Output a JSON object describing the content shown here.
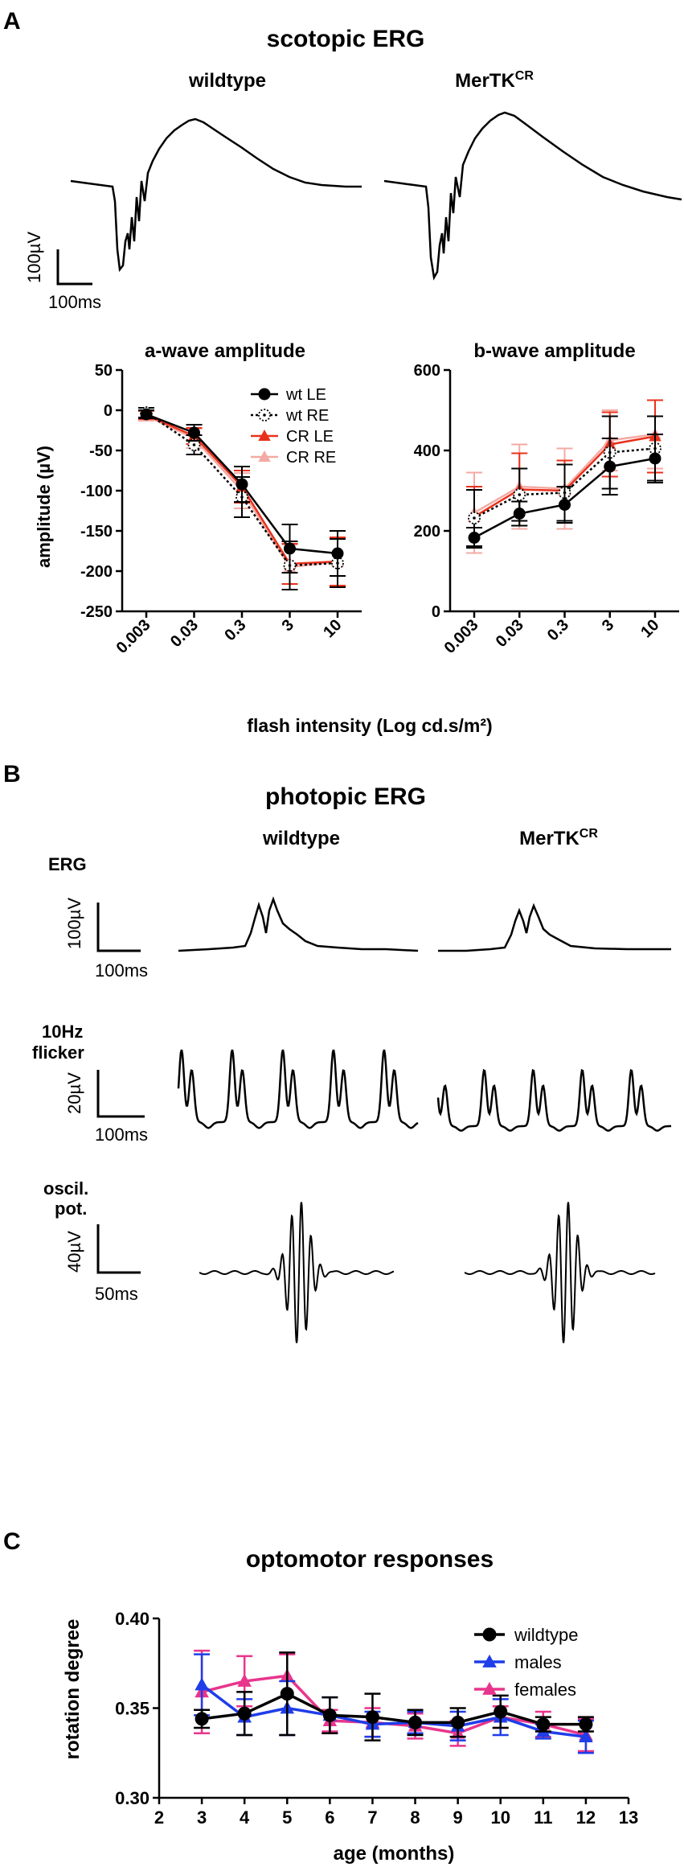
{
  "panelA": {
    "letter": "A",
    "title": "scotopic ERG",
    "wt_label": "wildtype",
    "cr_label_main": "MerTK",
    "cr_label_sup": "CR",
    "scale_uv": "100µV",
    "scale_ms": "100ms"
  },
  "panelB": {
    "letter": "B",
    "title": "photopic ERG",
    "wt_label": "wildtype",
    "cr_label_main": "MerTK",
    "cr_label_sup": "CR",
    "row1_label": "ERG",
    "row1_uv": "100µV",
    "row1_ms": "100ms",
    "row2_label_1": "10Hz",
    "row2_label_2": "flicker",
    "row2_uv": "20µV",
    "row2_ms": "100ms",
    "row3_label_1": "oscil.",
    "row3_label_2": "pot.",
    "row3_uv": "40µV",
    "row3_ms": "50ms"
  },
  "panelC": {
    "letter": "C",
    "title": "optomotor responses"
  },
  "colors": {
    "wt": "#000000",
    "cr": "#e8311c",
    "cr_light": "#f4aaa4",
    "males": "#1f3de8",
    "females": "#e8358c"
  },
  "chart_data": [
    {
      "id": "awave",
      "type": "line",
      "title": "a-wave amplitude",
      "ylabel": "amplitude (µV)",
      "xlabel": "flash intensity (Log cd.s/m²)",
      "categories": [
        "0.003",
        "0.03",
        "0.3",
        "3",
        "10"
      ],
      "yticks": [
        50,
        0,
        -50,
        -100,
        -150,
        -200,
        -250
      ],
      "ylim": [
        -250,
        50
      ],
      "legend_position": "top-right",
      "series": [
        {
          "name": "wt LE",
          "values": [
            -5,
            -28,
            -92,
            -172,
            -178
          ],
          "err": [
            5,
            10,
            22,
            30,
            28
          ]
        },
        {
          "name": "wt RE",
          "values": [
            -3,
            -43,
            -108,
            -193,
            -190
          ],
          "err": [
            6,
            12,
            25,
            30,
            30
          ]
        },
        {
          "name": "CR LE",
          "values": [
            -6,
            -32,
            -95,
            -191,
            -188
          ],
          "err": [
            5,
            10,
            20,
            25,
            30
          ]
        },
        {
          "name": "CR RE",
          "values": [
            -7,
            -35,
            -100,
            -195,
            -188
          ],
          "err": [
            6,
            12,
            22,
            28,
            30
          ]
        }
      ]
    },
    {
      "id": "bwave",
      "type": "line",
      "title": "b-wave amplitude",
      "xlabel": "flash intensity (Log cd.s/m²)",
      "categories": [
        "0.003",
        "0.03",
        "0.3",
        "3",
        "10"
      ],
      "yticks": [
        0,
        200,
        400,
        600
      ],
      "ylim": [
        0,
        600
      ],
      "series": [
        {
          "name": "wt LE",
          "values": [
            183,
            243,
            265,
            360,
            380
          ],
          "err": [
            25,
            30,
            45,
            70,
            60
          ]
        },
        {
          "name": "wt RE",
          "values": [
            232,
            290,
            295,
            395,
            405
          ],
          "err": [
            70,
            65,
            70,
            90,
            80
          ]
        },
        {
          "name": "CR LE",
          "values": [
            235,
            303,
            300,
            415,
            435
          ],
          "err": [
            75,
            90,
            75,
            80,
            90
          ]
        },
        {
          "name": "CR RE",
          "values": [
            245,
            310,
            305,
            425,
            440
          ],
          "err": [
            100,
            105,
            100,
            75,
            85
          ]
        }
      ]
    },
    {
      "id": "optomotor",
      "type": "line",
      "title": "optomotor responses",
      "xlabel": "age (months)",
      "ylabel": "rotation degree",
      "x": [
        3,
        4,
        5,
        6,
        7,
        8,
        9,
        10,
        11,
        12
      ],
      "xlim": [
        2,
        13
      ],
      "xticks": [
        2,
        3,
        4,
        5,
        6,
        7,
        8,
        9,
        10,
        11,
        12,
        13
      ],
      "ylim": [
        0.3,
        0.4
      ],
      "yticks": [
        "0.30",
        "0.35",
        "0.40"
      ],
      "legend_position": "top-right",
      "series": [
        {
          "name": "wildtype",
          "values": [
            0.344,
            0.347,
            0.358,
            0.346,
            0.345,
            0.342,
            0.342,
            0.348,
            0.341,
            0.341
          ],
          "err": [
            0.005,
            0.012,
            0.023,
            0.01,
            0.013,
            0.007,
            0.008,
            0.009,
            0.004,
            0.004
          ]
        },
        {
          "name": "males",
          "values": [
            0.363,
            0.345,
            0.35,
            0.346,
            0.341,
            0.342,
            0.34,
            0.345,
            0.337,
            0.334
          ],
          "err": [
            0.017,
            0.01,
            0.015,
            0.01,
            0.007,
            0.006,
            0.008,
            0.01,
            0.004,
            0.009
          ]
        },
        {
          "name": "females",
          "values": [
            0.359,
            0.365,
            0.368,
            0.343,
            0.342,
            0.34,
            0.336,
            0.345,
            0.341,
            0.335
          ],
          "err": [
            0.023,
            0.014,
            0.012,
            0.006,
            0.008,
            0.007,
            0.007,
            0.006,
            0.007,
            0.009
          ]
        }
      ]
    }
  ]
}
